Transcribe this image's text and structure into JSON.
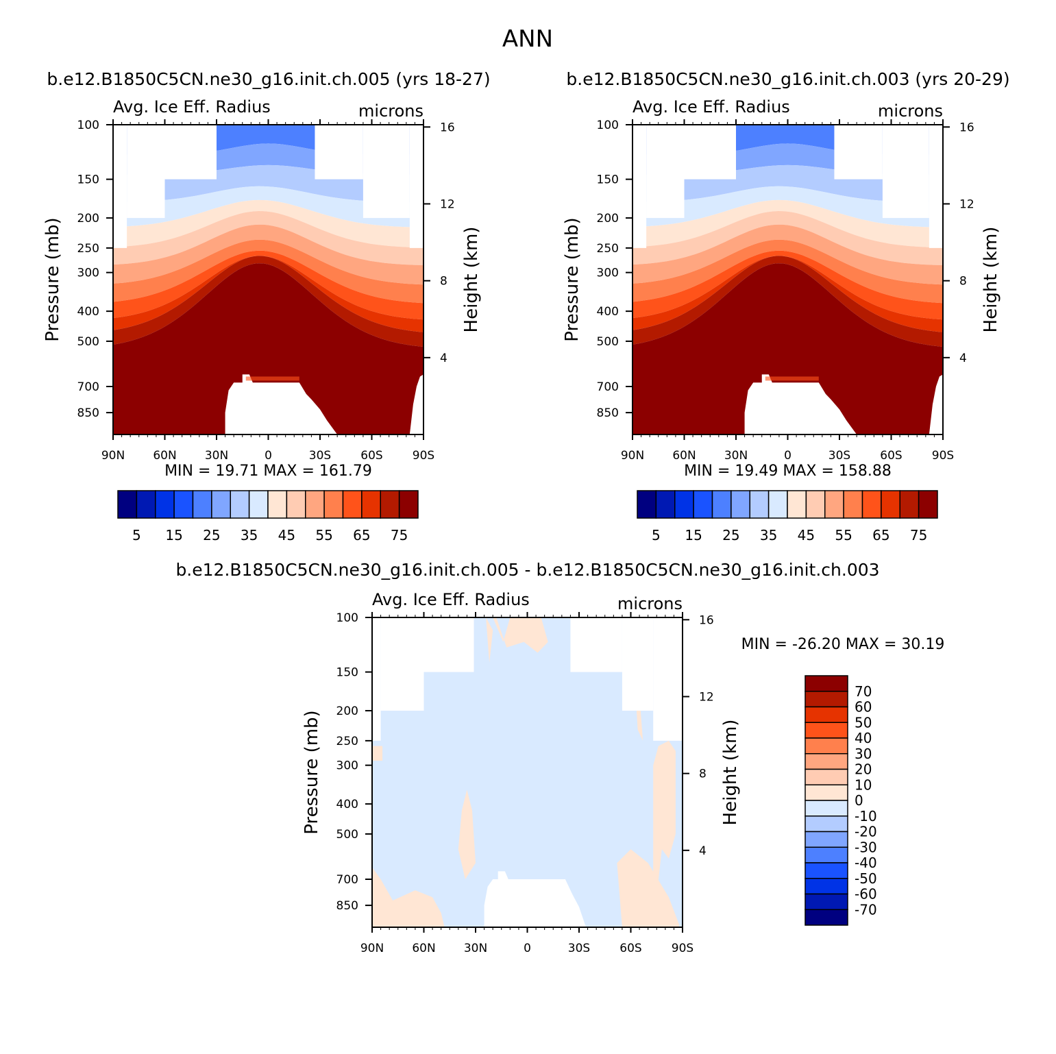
{
  "figure": {
    "title": "ANN",
    "panel_titles": [
      "b.e12.B1850C5CN.ne30_g16.init.ch.005 (yrs 18-27)",
      "b.e12.B1850C5CN.ne30_g16.init.ch.003 (yrs 20-29)",
      "b.e12.B1850C5CN.ne30_g16.init.ch.005 - b.e12.B1850C5CN.ne30_g16.init.ch.003"
    ]
  },
  "colors": {
    "abs_scale": [
      "#000080",
      "#0019b3",
      "#0033e6",
      "#1a53ff",
      "#4d80ff",
      "#80a6ff",
      "#b3ccff",
      "#d9eaff",
      "#ffe6d4",
      "#ffccb3",
      "#ffa680",
      "#ff804d",
      "#ff531a",
      "#e63300",
      "#b31a00",
      "#8c0000"
    ],
    "diff_scale": [
      "#000080",
      "#0019b3",
      "#0033e6",
      "#1a53ff",
      "#4d80ff",
      "#80a6ff",
      "#b3ccff",
      "#d9eaff",
      "#ffe6d4",
      "#ffccb3",
      "#ffa680",
      "#ff804d",
      "#ff531a",
      "#e63300",
      "#b31a00",
      "#8c0000"
    ]
  },
  "chart_data": [
    {
      "type": "heatmap",
      "title": "Avg. Ice Eff. Radius",
      "units": "microns",
      "xlabel": "",
      "ylabel": "Pressure (mb)",
      "y2label": "Height (km)",
      "xticks": [
        "90N",
        "60N",
        "30N",
        "0",
        "30S",
        "60S",
        "90S"
      ],
      "yticks": [
        100,
        150,
        200,
        250,
        300,
        400,
        500,
        700,
        850
      ],
      "y2ticks": [
        16,
        12,
        8,
        4
      ],
      "y_scale": "log",
      "ylim": [
        100,
        1000
      ],
      "stats": {
        "min_label": "MIN =",
        "min": "19.71",
        "max_label": "MAX =",
        "max": "161.79"
      },
      "colorbar_labels": [
        "5",
        "15",
        "25",
        "35",
        "45",
        "55",
        "65",
        "75"
      ],
      "contour_levels": [
        0,
        5,
        10,
        15,
        20,
        25,
        30,
        35,
        40,
        45,
        50,
        55,
        60,
        65,
        70,
        75
      ]
    },
    {
      "type": "heatmap",
      "title": "Avg. Ice Eff. Radius",
      "units": "microns",
      "xlabel": "",
      "ylabel": "Pressure (mb)",
      "y2label": "Height (km)",
      "xticks": [
        "90N",
        "60N",
        "30N",
        "0",
        "30S",
        "60S",
        "90S"
      ],
      "yticks": [
        100,
        150,
        200,
        250,
        300,
        400,
        500,
        700,
        850
      ],
      "y2ticks": [
        16,
        12,
        8,
        4
      ],
      "y_scale": "log",
      "ylim": [
        100,
        1000
      ],
      "stats": {
        "min_label": "MIN =",
        "min": "19.49",
        "max_label": "MAX =",
        "max": "158.88"
      },
      "colorbar_labels": [
        "5",
        "15",
        "25",
        "35",
        "45",
        "55",
        "65",
        "75"
      ],
      "contour_levels": [
        0,
        5,
        10,
        15,
        20,
        25,
        30,
        35,
        40,
        45,
        50,
        55,
        60,
        65,
        70,
        75
      ]
    },
    {
      "type": "heatmap",
      "title": "Avg. Ice Eff. Radius",
      "units": "microns",
      "xlabel": "",
      "ylabel": "Pressure (mb)",
      "y2label": "Height (km)",
      "xticks": [
        "90N",
        "60N",
        "30N",
        "0",
        "30S",
        "60S",
        "90S"
      ],
      "yticks": [
        100,
        150,
        200,
        250,
        300,
        400,
        500,
        700,
        850
      ],
      "y2ticks": [
        16,
        12,
        8,
        4
      ],
      "y_scale": "log",
      "ylim": [
        100,
        1000
      ],
      "stats": {
        "min_label": "MIN =",
        "min": "-26.20",
        "max_label": "MAX =",
        "max": "30.19"
      },
      "colorbar_labels": [
        "70",
        "60",
        "50",
        "40",
        "30",
        "20",
        "10",
        "0",
        "-10",
        "-20",
        "-30",
        "-40",
        "-50",
        "-60",
        "-70"
      ],
      "contour_levels": [
        -70,
        -60,
        -50,
        -40,
        -30,
        -20,
        -10,
        0,
        10,
        20,
        30,
        40,
        50,
        60,
        70
      ]
    }
  ]
}
